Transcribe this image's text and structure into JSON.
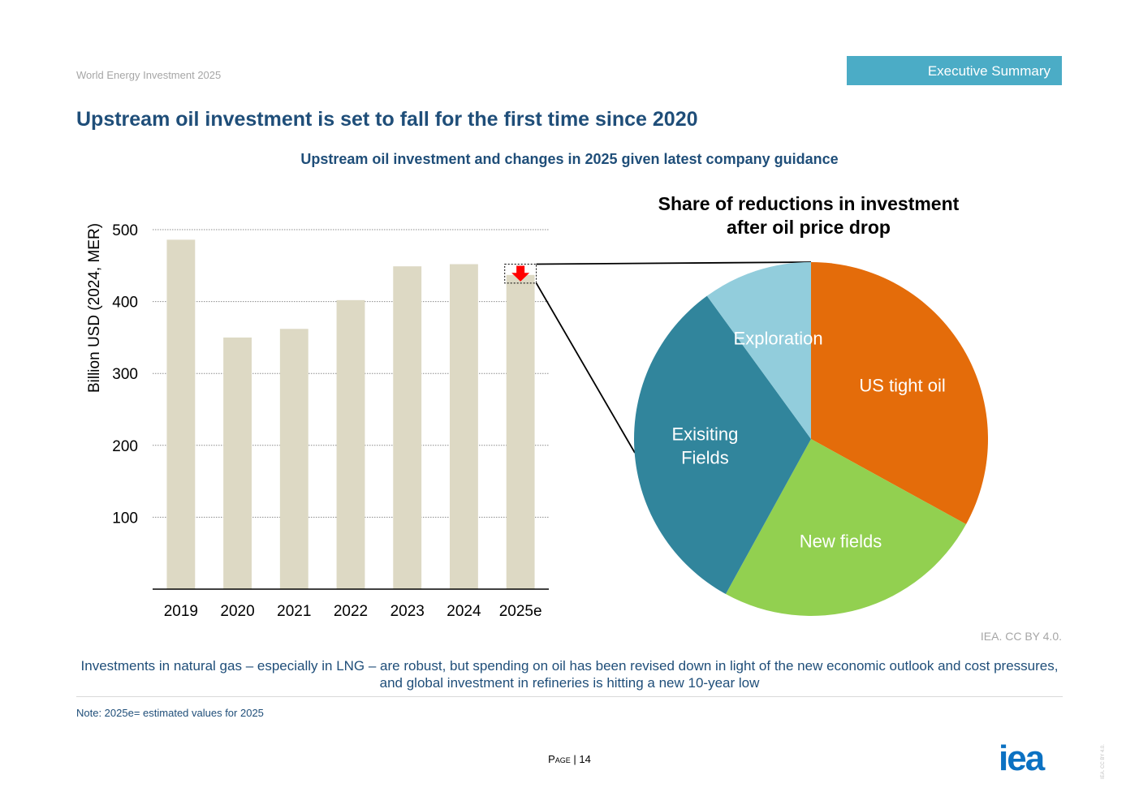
{
  "header": {
    "doc_name": "World Energy Investment 2025",
    "section_tab": "Executive Summary",
    "page_title": "Upstream oil investment is set to fall for the first time since 2020"
  },
  "figure": {
    "title": "Upstream oil investment and changes in 2025 given latest company guidance",
    "credit": "IEA. CC BY 4.0."
  },
  "chart_data": [
    {
      "type": "bar",
      "categories": [
        "2019",
        "2020",
        "2021",
        "2022",
        "2023",
        "2024",
        "2025e"
      ],
      "values": [
        486,
        350,
        362,
        402,
        449,
        452,
        437
      ],
      "ylabel": "Billion USD (2024, MER)",
      "ylim": [
        0,
        500
      ],
      "yticks": [
        100,
        200,
        300,
        400,
        500
      ],
      "grid": true,
      "colors": {
        "bar": "#ddd9c4",
        "reduction_arrow": "#ff0000"
      }
    },
    {
      "type": "pie",
      "title_lines": [
        "Share of reductions in investment",
        "after oil price drop"
      ],
      "labels": [
        "US tight oil",
        "New fields",
        "Exisiting Fields",
        "Exploration"
      ],
      "label_lines": [
        [
          "US tight oil"
        ],
        [
          "New fields"
        ],
        [
          "Exisiting",
          "Fields"
        ],
        [
          "Exploration"
        ]
      ],
      "values": [
        33,
        25,
        32,
        10
      ],
      "colors": [
        "#e46c0a",
        "#92d050",
        "#31859c",
        "#92cddc"
      ]
    }
  ],
  "footer": {
    "caption": "Investments in natural gas – especially in LNG – are robust, but spending on oil has been revised down in light of the new economic outlook and cost pressures, and global investment in refineries is hitting a new 10-year low",
    "note": "Note: 2025e= estimated values for 2025",
    "page_label": "Page",
    "page_number": "14",
    "logo_text": "iea",
    "side_license": "IEA. CC BY 4.0.",
    "logo_color": "#0b71c2"
  }
}
